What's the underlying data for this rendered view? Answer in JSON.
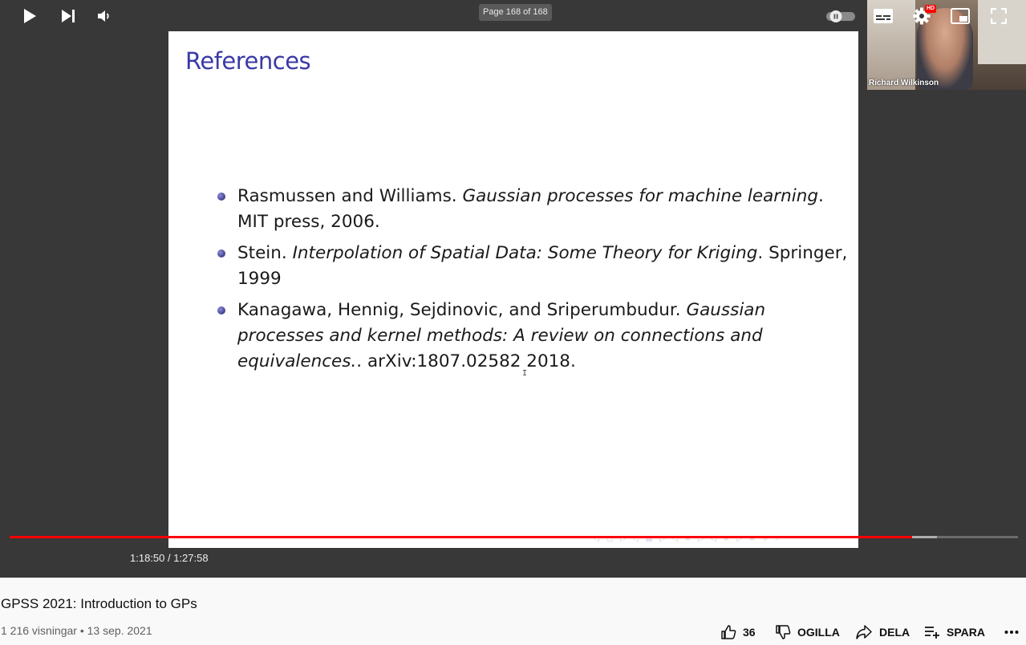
{
  "player": {
    "page_indicator": "Page 168 of 168",
    "slide": {
      "title": "References",
      "refs": [
        {
          "authors": "Rasmussen and Williams.",
          "title": "Gaussian processes for machine learning",
          "after_title": ".",
          "rest": "MIT press, 2006."
        },
        {
          "authors": "Stein.",
          "title": "Interpolation of Spatial Data: Some Theory for Kriging",
          "after_title": ".",
          "rest": "Springer, 1999"
        },
        {
          "authors": "Kanagawa, Hennig, Sejdinovic, and Sriperumbudur.",
          "title": "Gaussian processes and kernel methods: A review on connections and equivalences.",
          "after_title": ".",
          "rest": "arXiv:1807.02582 2018."
        }
      ]
    },
    "webcam": {
      "name": "Richard Wilkinson"
    },
    "progress": {
      "played_fraction": 0.895,
      "buffered_fraction": 0.92
    },
    "time": {
      "current": "1:18:50",
      "separator": " / ",
      "duration": "1:27:58"
    },
    "icons": {
      "play": "play-icon",
      "next": "next-icon",
      "volume": "volume-icon",
      "autoplay": "autoplay-toggle-icon",
      "subtitles": "subtitles-icon",
      "settings": "gear-icon",
      "hd_badge": "HD",
      "miniplayer": "miniplayer-icon",
      "fullscreen": "fullscreen-icon"
    }
  },
  "video": {
    "title": "GPSS 2021: Introduction to GPs",
    "views": "1 216 visningar",
    "dot": " • ",
    "date": "13 sep. 2021",
    "actions": {
      "likes": "36",
      "dislike": "OGILLA",
      "share": "DELA",
      "save": "SPARA"
    }
  }
}
